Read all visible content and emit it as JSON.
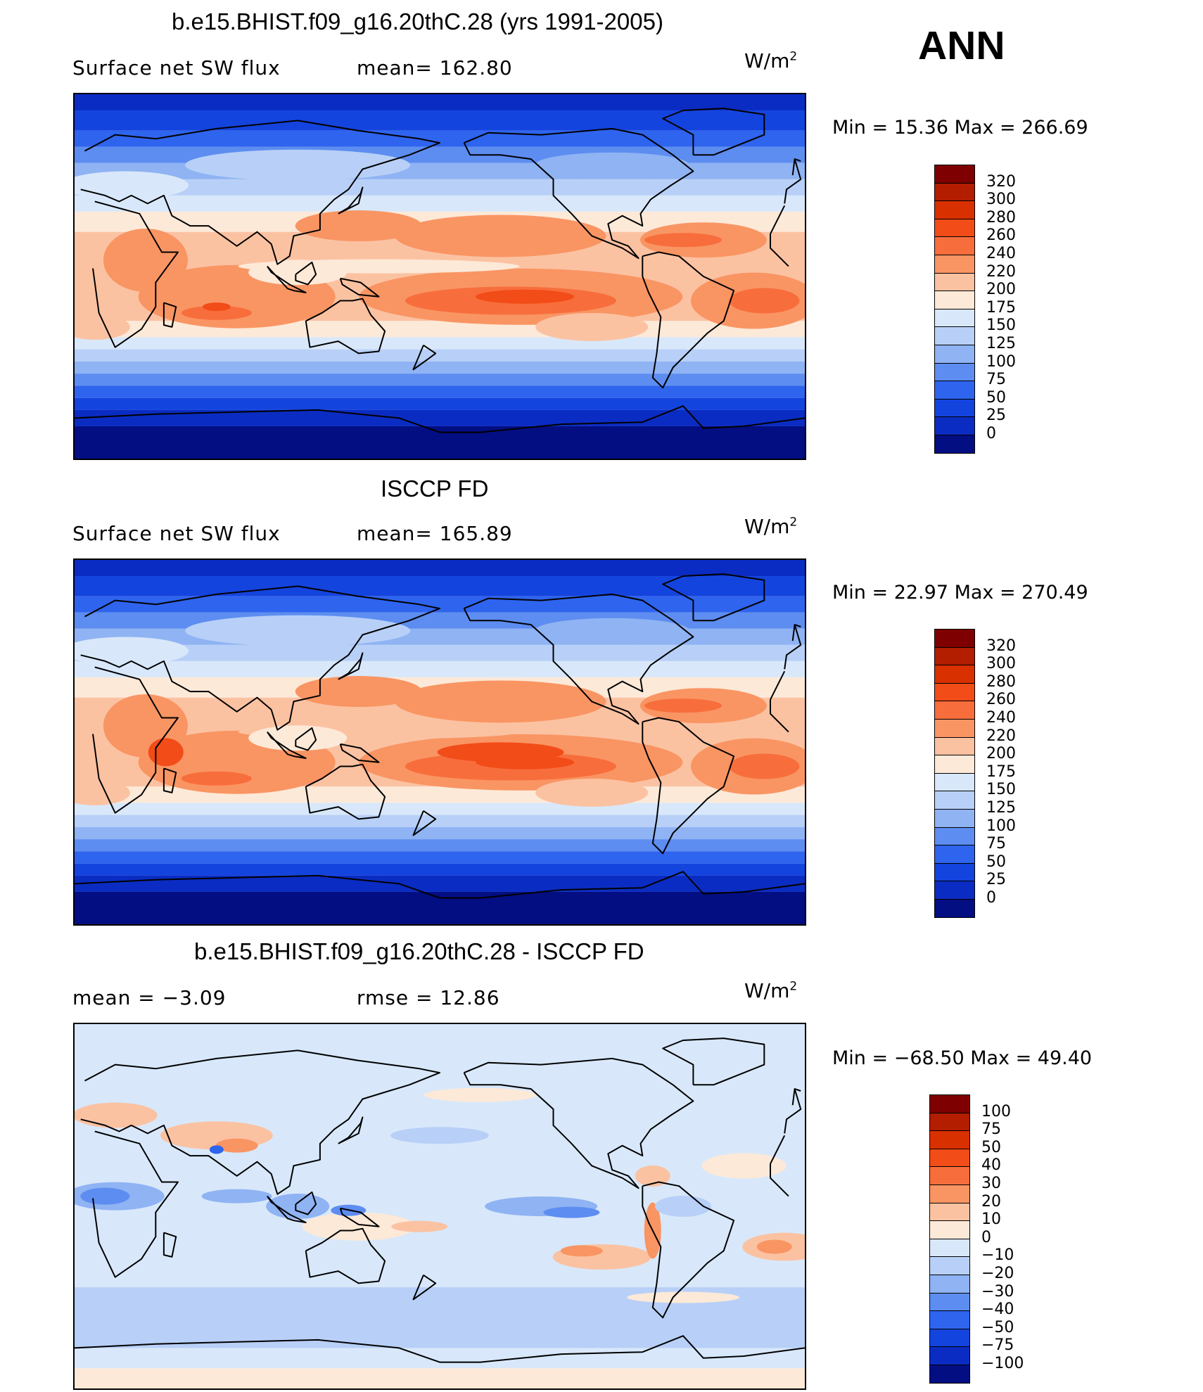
{
  "season": "ANN",
  "units_base": "W/m",
  "units_exp": "2",
  "panels": [
    {
      "title": "b.e15.BHIST.f09_g16.20thC.28 (yrs 1991-2005)",
      "left_text": "Surface net SW flux",
      "right_text": "mean=  162.80",
      "min_max": "Min =   15.36  Max  =  266.69",
      "field": "model"
    },
    {
      "title": "ISCCP FD",
      "left_text": "Surface net SW flux",
      "right_text": "mean=  165.89",
      "min_max": "Min =   22.97  Max  =  270.49",
      "field": "obs"
    },
    {
      "title": "b.e15.BHIST.f09_g16.20thC.28 - ISCCP FD",
      "left_text": "mean =    −3.09",
      "right_text": "rmse =     12.86",
      "min_max": "Min  = −68.50  Max  =    49.40",
      "field": "diff"
    }
  ],
  "colorbars": {
    "flux": {
      "labels": [
        "320",
        "300",
        "280",
        "260",
        "240",
        "220",
        "200",
        "175",
        "150",
        "125",
        "100",
        "75",
        "50",
        "25",
        "0"
      ],
      "colors": [
        "#7f0000",
        "#b31d00",
        "#d93000",
        "#f24c18",
        "#f76e3c",
        "#f99563",
        "#fbc2a2",
        "#fde9d8",
        "#d8e8fa",
        "#b8d0f7",
        "#8fb3f3",
        "#5d8df0",
        "#2e64ee",
        "#1444de",
        "#0b2cc2",
        "#030e82"
      ]
    },
    "diff": {
      "labels": [
        "100",
        "75",
        "50",
        "40",
        "30",
        "20",
        "10",
        "0",
        "−10",
        "−20",
        "−30",
        "−40",
        "−50",
        "−75",
        "−100"
      ],
      "colors": [
        "#7f0000",
        "#b31d00",
        "#d93000",
        "#f24c18",
        "#f76e3c",
        "#f99563",
        "#fbc2a2",
        "#fde9d8",
        "#d8e8fa",
        "#b8d0f7",
        "#8fb3f3",
        "#5d8df0",
        "#2e64ee",
        "#1444de",
        "#0b2cc2",
        "#030e82"
      ]
    }
  }
}
